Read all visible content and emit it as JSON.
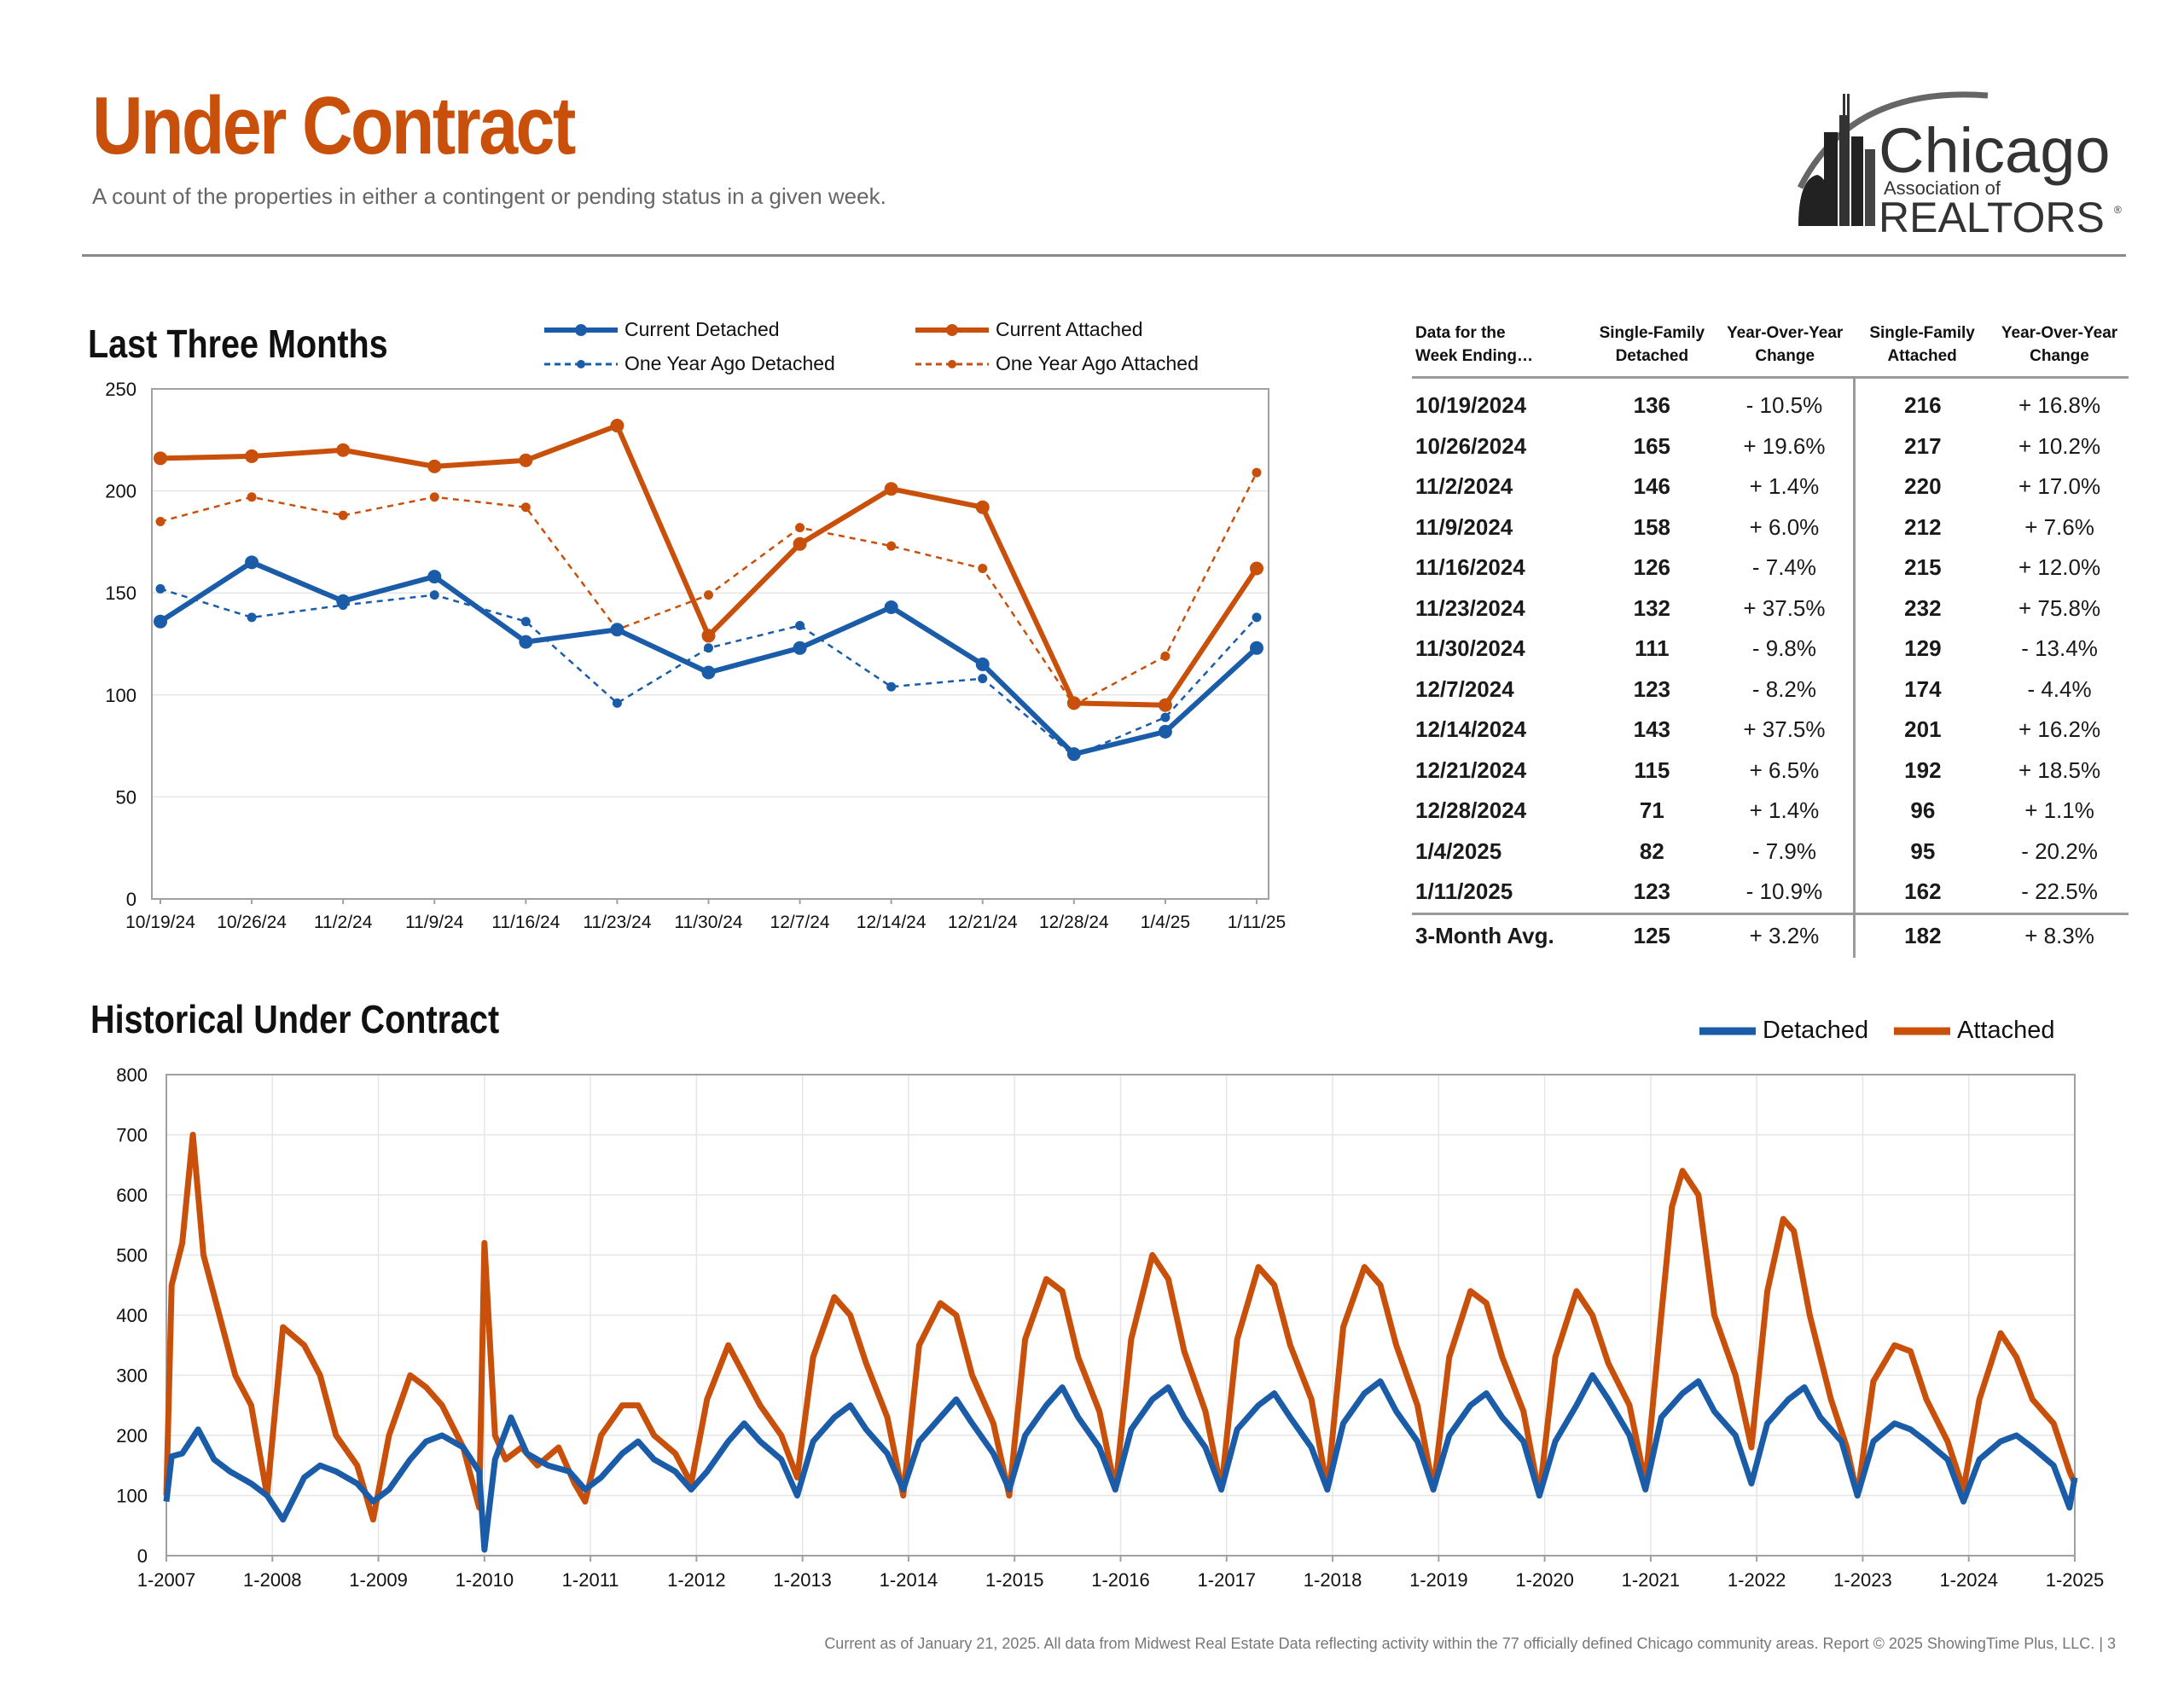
{
  "header": {
    "title": "Under Contract",
    "subtitle": "A count of the properties in either a contingent or pending status in a given week."
  },
  "logo": {
    "line1": "Chicago",
    "line2": "Association of",
    "line3": "REALTORS",
    "mark": "®"
  },
  "colors": {
    "detached": "#1a5ca8",
    "attached": "#c8500a",
    "title": "#c8500a"
  },
  "section1": {
    "heading": "Last Three Months"
  },
  "section2": {
    "heading": "Historical Under Contract"
  },
  "legend1": {
    "current_detached": "Current Detached",
    "current_attached": "Current Attached",
    "ago_detached": "One Year Ago Detached",
    "ago_attached": "One Year Ago Attached"
  },
  "legend2": {
    "detached": "Detached",
    "attached": "Attached"
  },
  "table": {
    "headers": {
      "week_line1": "Data for the",
      "week_line2": "Week Ending…",
      "det_line1": "Single-Family",
      "det_line2": "Detached",
      "yoy1_line1": "Year-Over-Year",
      "yoy1_line2": "Change",
      "att_line1": "Single-Family",
      "att_line2": "Attached",
      "yoy2_line1": "Year-Over-Year",
      "yoy2_line2": "Change"
    },
    "rows": [
      {
        "week": "10/19/2024",
        "det": "136",
        "det_yoy": "- 10.5%",
        "att": "216",
        "att_yoy": "+ 16.8%"
      },
      {
        "week": "10/26/2024",
        "det": "165",
        "det_yoy": "+ 19.6%",
        "att": "217",
        "att_yoy": "+ 10.2%"
      },
      {
        "week": "11/2/2024",
        "det": "146",
        "det_yoy": "+ 1.4%",
        "att": "220",
        "att_yoy": "+ 17.0%"
      },
      {
        "week": "11/9/2024",
        "det": "158",
        "det_yoy": "+ 6.0%",
        "att": "212",
        "att_yoy": "+ 7.6%"
      },
      {
        "week": "11/16/2024",
        "det": "126",
        "det_yoy": "- 7.4%",
        "att": "215",
        "att_yoy": "+ 12.0%"
      },
      {
        "week": "11/23/2024",
        "det": "132",
        "det_yoy": "+ 37.5%",
        "att": "232",
        "att_yoy": "+ 75.8%"
      },
      {
        "week": "11/30/2024",
        "det": "111",
        "det_yoy": "- 9.8%",
        "att": "129",
        "att_yoy": "- 13.4%"
      },
      {
        "week": "12/7/2024",
        "det": "123",
        "det_yoy": "- 8.2%",
        "att": "174",
        "att_yoy": "- 4.4%"
      },
      {
        "week": "12/14/2024",
        "det": "143",
        "det_yoy": "+ 37.5%",
        "att": "201",
        "att_yoy": "+ 16.2%"
      },
      {
        "week": "12/21/2024",
        "det": "115",
        "det_yoy": "+ 6.5%",
        "att": "192",
        "att_yoy": "+ 18.5%"
      },
      {
        "week": "12/28/2024",
        "det": "71",
        "det_yoy": "+ 1.4%",
        "att": "96",
        "att_yoy": "+ 1.1%"
      },
      {
        "week": "1/4/2025",
        "det": "82",
        "det_yoy": "- 7.9%",
        "att": "95",
        "att_yoy": "- 20.2%"
      },
      {
        "week": "1/11/2025",
        "det": "123",
        "det_yoy": "- 10.9%",
        "att": "162",
        "att_yoy": "- 22.5%"
      }
    ],
    "avg": {
      "label": "3-Month Avg.",
      "det": "125",
      "det_yoy": "+ 3.2%",
      "att": "182",
      "att_yoy": "+ 8.3%"
    }
  },
  "footer": "Current as of January 21, 2025.  All data from Midwest Real Estate Data reflecting activity within the 77 officially defined Chicago community areas. Report © 2025 ShowingTime Plus, LLC.  |  3",
  "chart_data": [
    {
      "type": "line",
      "title": "Last Three Months",
      "categories": [
        "10/19/24",
        "10/26/24",
        "11/2/24",
        "11/9/24",
        "11/16/24",
        "11/23/24",
        "11/30/24",
        "12/7/24",
        "12/14/24",
        "12/21/24",
        "12/28/24",
        "1/4/25",
        "1/11/25"
      ],
      "ylim": [
        0,
        250
      ],
      "yticks": [
        0,
        50,
        100,
        150,
        200,
        250
      ],
      "grid": true,
      "legend": "top",
      "series": [
        {
          "name": "Current Detached",
          "values": [
            136,
            165,
            146,
            158,
            126,
            132,
            111,
            123,
            143,
            115,
            71,
            82,
            123
          ]
        },
        {
          "name": "Current Attached",
          "values": [
            216,
            217,
            220,
            212,
            215,
            232,
            129,
            174,
            201,
            192,
            96,
            95,
            162
          ]
        },
        {
          "name": "One Year Ago Detached",
          "values": [
            152,
            138,
            144,
            149,
            136,
            96,
            123,
            134,
            104,
            108,
            70,
            89,
            138
          ]
        },
        {
          "name": "One Year Ago Attached",
          "values": [
            185,
            197,
            188,
            197,
            192,
            132,
            149,
            182,
            173,
            162,
            95,
            119,
            209
          ]
        }
      ]
    },
    {
      "type": "line",
      "title": "Historical Under Contract",
      "x_tick_labels": [
        "1-2007",
        "1-2008",
        "1-2009",
        "1-2010",
        "1-2011",
        "1-2012",
        "1-2013",
        "1-2014",
        "1-2015",
        "1-2016",
        "1-2017",
        "1-2018",
        "1-2019",
        "1-2020",
        "1-2021",
        "1-2022",
        "1-2023",
        "1-2024",
        "1-2025"
      ],
      "ylim": [
        0,
        800
      ],
      "yticks": [
        0,
        100,
        200,
        300,
        400,
        500,
        600,
        700,
        800
      ],
      "grid": true,
      "legend": "top-right",
      "x_unit": "year",
      "series": [
        {
          "name": "Detached",
          "x": [
            2007.0,
            2007.05,
            2007.15,
            2007.3,
            2007.45,
            2007.6,
            2007.8,
            2007.95,
            2008.1,
            2008.3,
            2008.45,
            2008.6,
            2008.8,
            2008.95,
            2009.1,
            2009.3,
            2009.45,
            2009.6,
            2009.8,
            2009.95,
            2010.0,
            2010.1,
            2010.25,
            2010.4,
            2010.6,
            2010.8,
            2010.95,
            2011.1,
            2011.3,
            2011.45,
            2011.6,
            2011.8,
            2011.95,
            2012.1,
            2012.3,
            2012.45,
            2012.6,
            2012.8,
            2012.95,
            2013.1,
            2013.3,
            2013.45,
            2013.6,
            2013.8,
            2013.95,
            2014.1,
            2014.3,
            2014.45,
            2014.6,
            2014.8,
            2014.95,
            2015.1,
            2015.3,
            2015.45,
            2015.6,
            2015.8,
            2015.95,
            2016.1,
            2016.3,
            2016.45,
            2016.6,
            2016.8,
            2016.95,
            2017.1,
            2017.3,
            2017.45,
            2017.6,
            2017.8,
            2017.95,
            2018.1,
            2018.3,
            2018.45,
            2018.6,
            2018.8,
            2018.95,
            2019.1,
            2019.3,
            2019.45,
            2019.6,
            2019.8,
            2019.95,
            2020.1,
            2020.3,
            2020.45,
            2020.6,
            2020.8,
            2020.95,
            2021.1,
            2021.3,
            2021.45,
            2021.6,
            2021.8,
            2021.95,
            2022.1,
            2022.3,
            2022.45,
            2022.6,
            2022.8,
            2022.95,
            2023.1,
            2023.3,
            2023.45,
            2023.6,
            2023.8,
            2023.95,
            2024.1,
            2024.3,
            2024.45,
            2024.6,
            2024.8,
            2024.95,
            2025.0
          ],
          "y": [
            90,
            165,
            170,
            210,
            160,
            140,
            120,
            100,
            60,
            130,
            150,
            140,
            120,
            90,
            110,
            160,
            190,
            200,
            180,
            140,
            10,
            160,
            230,
            170,
            150,
            140,
            110,
            130,
            170,
            190,
            160,
            140,
            110,
            140,
            190,
            220,
            190,
            160,
            100,
            190,
            230,
            250,
            210,
            170,
            110,
            190,
            230,
            260,
            220,
            170,
            110,
            200,
            250,
            280,
            230,
            180,
            110,
            210,
            260,
            280,
            230,
            180,
            110,
            210,
            250,
            270,
            230,
            180,
            110,
            220,
            270,
            290,
            240,
            190,
            110,
            200,
            250,
            270,
            230,
            190,
            100,
            190,
            250,
            300,
            260,
            200,
            110,
            230,
            270,
            290,
            240,
            200,
            120,
            220,
            260,
            280,
            230,
            190,
            100,
            190,
            220,
            210,
            190,
            160,
            90,
            160,
            190,
            200,
            180,
            150,
            80,
            130
          ]
        },
        {
          "name": "Attached",
          "x": [
            2007.0,
            2007.05,
            2007.15,
            2007.25,
            2007.35,
            2007.5,
            2007.65,
            2007.8,
            2007.95,
            2008.1,
            2008.3,
            2008.45,
            2008.6,
            2008.8,
            2008.95,
            2009.1,
            2009.3,
            2009.45,
            2009.6,
            2009.8,
            2009.95,
            2010.0,
            2010.1,
            2010.2,
            2010.35,
            2010.5,
            2010.7,
            2010.85,
            2010.95,
            2011.1,
            2011.3,
            2011.45,
            2011.6,
            2011.8,
            2011.95,
            2012.1,
            2012.3,
            2012.45,
            2012.6,
            2012.8,
            2012.95,
            2013.1,
            2013.3,
            2013.45,
            2013.6,
            2013.8,
            2013.95,
            2014.1,
            2014.3,
            2014.45,
            2014.6,
            2014.8,
            2014.95,
            2015.1,
            2015.3,
            2015.45,
            2015.6,
            2015.8,
            2015.95,
            2016.1,
            2016.3,
            2016.45,
            2016.6,
            2016.8,
            2016.95,
            2017.1,
            2017.3,
            2017.45,
            2017.6,
            2017.8,
            2017.95,
            2018.1,
            2018.3,
            2018.45,
            2018.6,
            2018.8,
            2018.95,
            2019.1,
            2019.3,
            2019.45,
            2019.6,
            2019.8,
            2019.95,
            2020.1,
            2020.3,
            2020.45,
            2020.6,
            2020.8,
            2020.95,
            2021.1,
            2021.2,
            2021.3,
            2021.45,
            2021.6,
            2021.8,
            2021.95,
            2022.1,
            2022.25,
            2022.35,
            2022.5,
            2022.7,
            2022.85,
            2022.95,
            2023.1,
            2023.3,
            2023.45,
            2023.6,
            2023.8,
            2023.95,
            2024.1,
            2024.3,
            2024.45,
            2024.6,
            2024.8,
            2024.95,
            2025.0
          ],
          "y": [
            100,
            450,
            520,
            700,
            500,
            400,
            300,
            250,
            100,
            380,
            350,
            300,
            200,
            150,
            60,
            200,
            300,
            280,
            250,
            180,
            80,
            520,
            200,
            160,
            180,
            150,
            180,
            120,
            90,
            200,
            250,
            250,
            200,
            170,
            120,
            260,
            350,
            300,
            250,
            200,
            130,
            330,
            430,
            400,
            320,
            230,
            100,
            350,
            420,
            400,
            300,
            220,
            100,
            360,
            460,
            440,
            330,
            240,
            110,
            360,
            500,
            460,
            340,
            240,
            110,
            360,
            480,
            450,
            350,
            260,
            110,
            380,
            480,
            450,
            350,
            250,
            110,
            330,
            440,
            420,
            330,
            240,
            100,
            330,
            440,
            400,
            320,
            250,
            120,
            400,
            580,
            640,
            600,
            400,
            300,
            180,
            440,
            560,
            540,
            400,
            260,
            180,
            100,
            290,
            350,
            340,
            260,
            190,
            110,
            260,
            370,
            330,
            260,
            220,
            140,
            120
          ]
        }
      ]
    }
  ]
}
